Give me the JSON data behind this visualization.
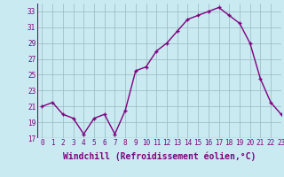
{
  "x": [
    0,
    1,
    2,
    3,
    4,
    5,
    6,
    7,
    8,
    9,
    10,
    11,
    12,
    13,
    14,
    15,
    16,
    17,
    18,
    19,
    20,
    21,
    22,
    23
  ],
  "y": [
    21,
    21.5,
    20,
    19.5,
    17.5,
    19.5,
    20,
    17.5,
    20.5,
    25.5,
    26,
    28,
    29,
    30.5,
    32,
    32.5,
    33,
    33.5,
    32.5,
    31.5,
    29,
    24.5,
    21.5,
    20
  ],
  "line_color": "#800080",
  "marker": "+",
  "bg_color": "#c8eaf0",
  "grid_color": "#9ab8c0",
  "xlabel": "Windchill (Refroidissement éolien,°C)",
  "ylim": [
    17,
    34
  ],
  "xlim": [
    -0.5,
    23
  ],
  "yticks": [
    17,
    19,
    21,
    23,
    25,
    27,
    29,
    31,
    33
  ],
  "xticks": [
    0,
    1,
    2,
    3,
    4,
    5,
    6,
    7,
    8,
    9,
    10,
    11,
    12,
    13,
    14,
    15,
    16,
    17,
    18,
    19,
    20,
    21,
    22,
    23
  ],
  "tick_fontsize": 5.5,
  "xlabel_fontsize": 7.0,
  "linewidth": 1.0,
  "markersize": 3.5,
  "markeredgewidth": 1.0
}
